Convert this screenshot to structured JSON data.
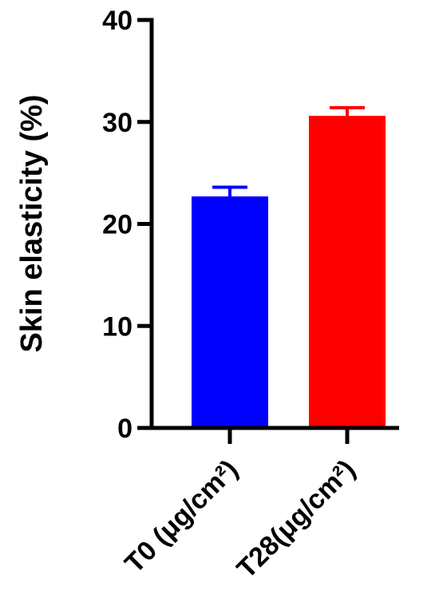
{
  "chart_data": {
    "type": "bar",
    "title": "",
    "xlabel": "",
    "ylabel": "Skin elasticity (%)",
    "categories": [
      "T0 (μg/cm²)",
      "T28(μg/cm²)"
    ],
    "values": [
      22.7,
      30.6
    ],
    "errors": [
      0.9,
      0.8
    ],
    "colors": [
      "#0000ff",
      "#ff0000"
    ],
    "ylim": [
      0,
      40
    ],
    "yticks": [
      "0",
      "10",
      "20",
      "30",
      "40"
    ],
    "grid": false,
    "legend": "none"
  }
}
